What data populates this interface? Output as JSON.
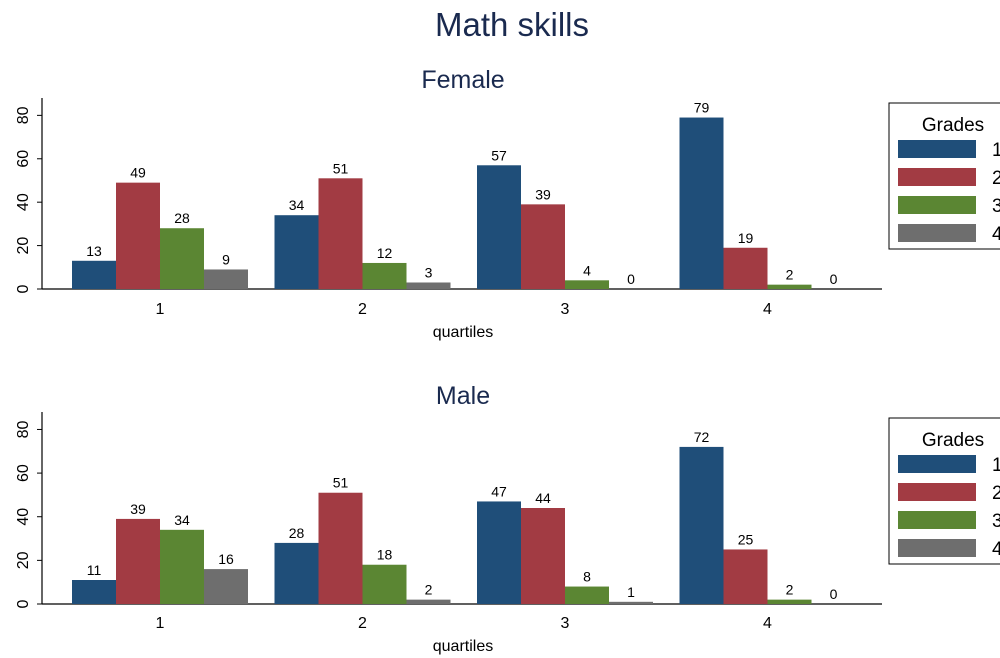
{
  "title": "Math skills",
  "colors": {
    "series1": "#1f4e79",
    "series2": "#a23b43",
    "series3": "#5b8633",
    "series4": "#6e6e6e",
    "title": "#1a2a4f"
  },
  "chart_data": [
    {
      "type": "bar",
      "title": "Female",
      "xlabel": "quartiles",
      "ylabel": "",
      "categories": [
        "1",
        "2",
        "3",
        "4"
      ],
      "ylim": [
        0,
        88
      ],
      "yticks": [
        "0",
        "20",
        "40",
        "60",
        "80"
      ],
      "legend": {
        "title": "Grades",
        "position": "right"
      },
      "series": [
        {
          "name": "1",
          "values": [
            13,
            34,
            57,
            79
          ]
        },
        {
          "name": "2",
          "values": [
            49,
            51,
            39,
            19
          ]
        },
        {
          "name": "3",
          "values": [
            28,
            12,
            4,
            2
          ]
        },
        {
          "name": "4",
          "values": [
            9,
            3,
            0,
            0
          ]
        }
      ]
    },
    {
      "type": "bar",
      "title": "Male",
      "xlabel": "quartiles",
      "ylabel": "",
      "categories": [
        "1",
        "2",
        "3",
        "4"
      ],
      "ylim": [
        0,
        88
      ],
      "yticks": [
        "0",
        "20",
        "40",
        "60",
        "80"
      ],
      "legend": {
        "title": "Grades",
        "position": "right"
      },
      "series": [
        {
          "name": "1",
          "values": [
            11,
            28,
            47,
            72
          ]
        },
        {
          "name": "2",
          "values": [
            39,
            51,
            44,
            25
          ]
        },
        {
          "name": "3",
          "values": [
            34,
            18,
            8,
            2
          ]
        },
        {
          "name": "4",
          "values": [
            16,
            2,
            1,
            0
          ]
        }
      ]
    }
  ]
}
